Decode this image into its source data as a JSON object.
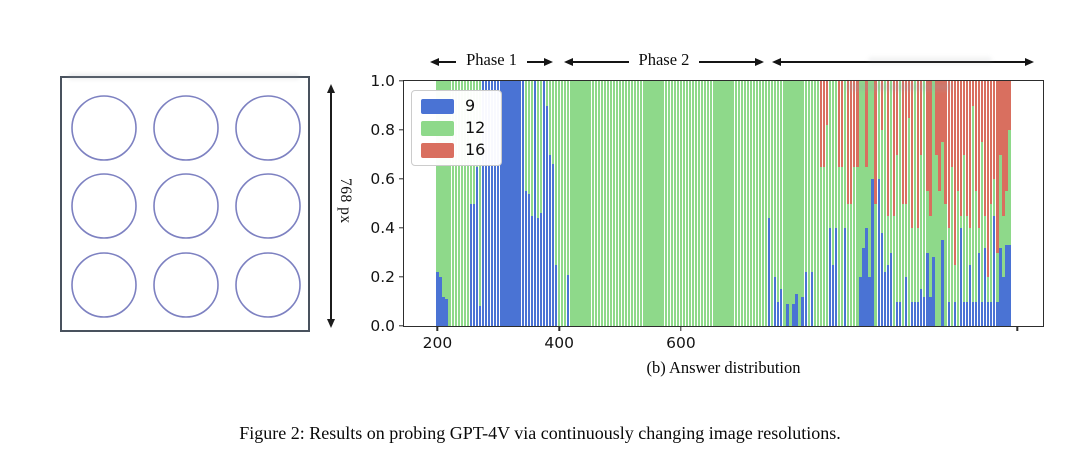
{
  "figure": {
    "caption": "Figure 2: Results on probing GPT-4V via continuously changing image resolutions.",
    "subcaption": "(b) Answer distribution"
  },
  "left_panel": {
    "dimension_label": "768 px",
    "grid_rows": 3,
    "grid_cols": 3,
    "circle_color": "#7d81c1",
    "box_border_color": "#49525e"
  },
  "chart_data": {
    "type": "bar",
    "stacked": true,
    "title": "",
    "xlabel": "",
    "ylabel": "",
    "xlim": [
      145,
      1195
    ],
    "ylim": [
      0.0,
      1.0
    ],
    "x_ticks": [
      200,
      400,
      600
    ],
    "extra_unlabeled_tick": 1153,
    "y_ticks": [
      "1.0",
      "0.8",
      "0.6",
      "0.4",
      "0.2",
      "0.0"
    ],
    "grid": false,
    "legend_position": "upper left",
    "series_names": [
      "9",
      "12",
      "16"
    ],
    "colors": {
      "9": "#4a73d4",
      "12": "#8ed98a",
      "16": "#d96f5f"
    },
    "legend": {
      "entries": [
        {
          "label": "9",
          "color": "#4a73d4"
        },
        {
          "label": "12",
          "color": "#8ed98a"
        },
        {
          "label": "16",
          "color": "#d96f5f"
        }
      ]
    },
    "phases": [
      {
        "label": "Phase 1",
        "from": 190,
        "to": 390
      },
      {
        "label": "Phase  2",
        "from": 408,
        "to": 737
      },
      {
        "label": "",
        "from": 749,
        "to": 1178
      }
    ],
    "x_start": 200,
    "x_step": 5,
    "bars_note": "each entry = [fraction_answer_9_blue, fraction_answer_16_red]; green answer-12 fraction = 1 - blue - red; {r:n,v:[..]} repeats entry n times",
    "bars": [
      [
        0.22,
        0
      ],
      [
        0.2,
        0
      ],
      [
        0.12,
        0
      ],
      [
        0.11,
        0
      ],
      {
        "r": 7,
        "v": [
          0,
          0
        ]
      },
      [
        0.5,
        0
      ],
      [
        0.5,
        0
      ],
      [
        0.65,
        0
      ],
      [
        0.08,
        0
      ],
      {
        "r": 14,
        "v": [
          1,
          0
        ]
      },
      [
        0.55,
        0
      ],
      [
        0.54,
        0
      ],
      [
        0.45,
        0
      ],
      [
        1,
        0
      ],
      [
        0.44,
        0
      ],
      [
        0.46,
        0
      ],
      [
        1,
        0
      ],
      [
        0.9,
        0
      ],
      [
        0.7,
        0
      ],
      [
        0.66,
        0
      ],
      [
        0.25,
        0
      ],
      [
        0,
        0
      ],
      [
        0,
        0
      ],
      [
        0,
        0
      ],
      [
        0.21,
        0
      ],
      {
        "r": 64,
        "v": [
          0,
          0
        ]
      },
      [
        0,
        0
      ],
      [
        0.44,
        0
      ],
      [
        0,
        0
      ],
      [
        0.2,
        0
      ],
      [
        0.1,
        0
      ],
      [
        0.15,
        0
      ],
      [
        0,
        0
      ],
      [
        0.09,
        0
      ],
      [
        0,
        0
      ],
      [
        0.09,
        0
      ],
      [
        0.13,
        0
      ],
      [
        0,
        0
      ],
      [
        0.12,
        0
      ],
      [
        0.22,
        0
      ],
      [
        0,
        0
      ],
      [
        0.22,
        0
      ],
      [
        0,
        0
      ],
      [
        0,
        0
      ],
      [
        0,
        0.35
      ],
      [
        0,
        0.35
      ],
      [
        0,
        0.18
      ],
      [
        0.4,
        0
      ],
      [
        0.25,
        0
      ],
      [
        0.4,
        0
      ],
      [
        0,
        0.35
      ],
      [
        0,
        0.35
      ],
      [
        0.4,
        0
      ],
      [
        0,
        0.5
      ],
      [
        0,
        0.5
      ],
      [
        0,
        0.35
      ],
      [
        0,
        0.35
      ],
      [
        0.2,
        0
      ],
      [
        0.32,
        0
      ],
      [
        0.4,
        0.35
      ],
      [
        0.2,
        0
      ],
      [
        0.6,
        0
      ],
      [
        0,
        0.5
      ],
      [
        0.6,
        0
      ],
      [
        0.38,
        0.2
      ],
      [
        0.22,
        0
      ],
      [
        0.25,
        0.55
      ],
      [
        0.3,
        0
      ],
      [
        0,
        0.55
      ],
      [
        0.1,
        0.3
      ],
      [
        0.1,
        0
      ],
      [
        0,
        0.5
      ],
      [
        0.2,
        0.5
      ],
      [
        0,
        0.15
      ],
      [
        0.1,
        0.6
      ],
      [
        0.1,
        0
      ],
      [
        0.1,
        0.6
      ],
      [
        0.15,
        0.3
      ],
      [
        0.12,
        0
      ],
      [
        0.3,
        0.45
      ],
      [
        0.12,
        0.55
      ],
      [
        0.28,
        0
      ],
      [
        0,
        0.3
      ],
      [
        0,
        0.45
      ],
      [
        0.35,
        0.25
      ],
      [
        0,
        0.5
      ],
      [
        0.1,
        0.6
      ],
      [
        0,
        0.35
      ],
      [
        0.1,
        0.75
      ],
      [
        0,
        0.45
      ],
      [
        0.4,
        0.55
      ],
      [
        0.1,
        0.3
      ],
      [
        0.1,
        0.55
      ],
      [
        0.25,
        0.6
      ],
      [
        0.1,
        0.1
      ],
      [
        0.1,
        0.45
      ],
      [
        0.3,
        0.6
      ],
      [
        0.1,
        0.25
      ],
      [
        0.32,
        0.55
      ],
      [
        0.1,
        0.8
      ],
      [
        0.1,
        0.5
      ],
      [
        0.45,
        0.4
      ],
      [
        0.1,
        0.7
      ],
      [
        0.32,
        0.3
      ],
      [
        0.2,
        0.55
      ],
      [
        0.33,
        0.45
      ],
      [
        0.33,
        0.2
      ]
    ]
  }
}
